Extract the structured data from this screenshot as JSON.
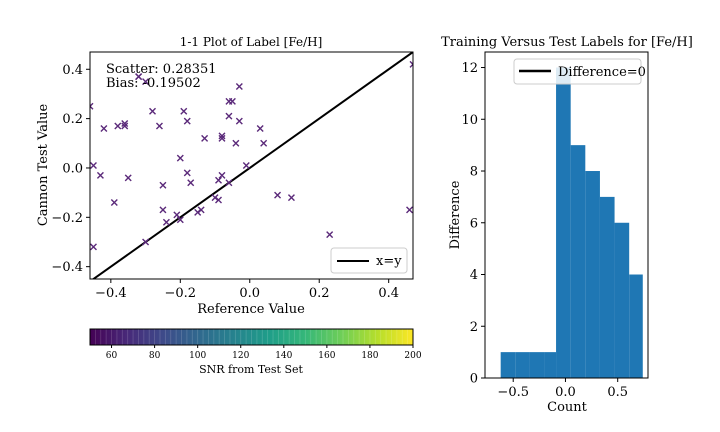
{
  "chart_data": [
    {
      "type": "scatter",
      "title": "1-1 Plot of Label [Fe/H]",
      "xlabel": "Reference Value",
      "ylabel": "Cannon Test Value",
      "xlim": [
        -0.46,
        0.47
      ],
      "ylim": [
        -0.45,
        0.47
      ],
      "xticks": [
        -0.4,
        -0.2,
        0.0,
        0.2,
        0.4
      ],
      "xtick_labels": [
        "−0.4",
        "−0.2",
        "0.0",
        "0.2",
        "0.4"
      ],
      "yticks": [
        -0.4,
        -0.2,
        0.0,
        0.2,
        0.4
      ],
      "ytick_labels": [
        "−0.4",
        "−0.2",
        "0.0",
        "0.2",
        "0.4"
      ],
      "annotations": [
        "Scatter: 0.28351",
        "Bias: -0.19502"
      ],
      "legend": {
        "position": "lower-right",
        "entries": [
          "x=y"
        ]
      },
      "reference_line": {
        "label": "x=y",
        "slope": 1,
        "intercept": 0
      },
      "marker": "x",
      "marker_color": "#5b2a7a",
      "points": [
        {
          "x": -0.46,
          "y": 0.25
        },
        {
          "x": -0.45,
          "y": 0.01
        },
        {
          "x": -0.45,
          "y": -0.32
        },
        {
          "x": -0.43,
          "y": -0.03
        },
        {
          "x": -0.42,
          "y": 0.16
        },
        {
          "x": -0.39,
          "y": -0.14
        },
        {
          "x": -0.38,
          "y": 0.17
        },
        {
          "x": -0.36,
          "y": 0.18
        },
        {
          "x": -0.36,
          "y": 0.17
        },
        {
          "x": -0.35,
          "y": -0.04
        },
        {
          "x": -0.32,
          "y": 0.37
        },
        {
          "x": -0.32,
          "y": 0.37
        },
        {
          "x": -0.3,
          "y": 0.35
        },
        {
          "x": -0.3,
          "y": -0.3
        },
        {
          "x": -0.28,
          "y": 0.23
        },
        {
          "x": -0.26,
          "y": 0.17
        },
        {
          "x": -0.25,
          "y": -0.07
        },
        {
          "x": -0.25,
          "y": -0.17
        },
        {
          "x": -0.24,
          "y": -0.22
        },
        {
          "x": -0.21,
          "y": -0.19
        },
        {
          "x": -0.2,
          "y": 0.04
        },
        {
          "x": -0.2,
          "y": -0.21
        },
        {
          "x": -0.19,
          "y": 0.23
        },
        {
          "x": -0.18,
          "y": 0.19
        },
        {
          "x": -0.18,
          "y": -0.02
        },
        {
          "x": -0.17,
          "y": -0.06
        },
        {
          "x": -0.15,
          "y": -0.18
        },
        {
          "x": -0.14,
          "y": -0.17
        },
        {
          "x": -0.13,
          "y": 0.12
        },
        {
          "x": -0.1,
          "y": -0.12
        },
        {
          "x": -0.09,
          "y": -0.05
        },
        {
          "x": -0.09,
          "y": -0.13
        },
        {
          "x": -0.08,
          "y": 0.13
        },
        {
          "x": -0.08,
          "y": -0.03
        },
        {
          "x": -0.08,
          "y": 0.12
        },
        {
          "x": -0.06,
          "y": 0.27
        },
        {
          "x": -0.06,
          "y": 0.21
        },
        {
          "x": -0.06,
          "y": -0.06
        },
        {
          "x": -0.05,
          "y": 0.27
        },
        {
          "x": -0.04,
          "y": 0.1
        },
        {
          "x": -0.03,
          "y": 0.19
        },
        {
          "x": -0.03,
          "y": 0.33
        },
        {
          "x": -0.01,
          "y": 0.01
        },
        {
          "x": 0.03,
          "y": 0.16
        },
        {
          "x": 0.04,
          "y": 0.1
        },
        {
          "x": 0.08,
          "y": -0.11
        },
        {
          "x": 0.12,
          "y": -0.12
        },
        {
          "x": 0.23,
          "y": -0.27
        },
        {
          "x": 0.46,
          "y": -0.17
        },
        {
          "x": 0.47,
          "y": 0.42
        }
      ]
    },
    {
      "type": "colorbar",
      "label": "SNR from Test Set",
      "colormap": "viridis",
      "range": [
        50,
        200
      ],
      "ticks": [
        60,
        80,
        100,
        120,
        140,
        160,
        180,
        200
      ],
      "colors": [
        "#440154",
        "#482878",
        "#3e4989",
        "#31688e",
        "#26828e",
        "#1f9e89",
        "#35b779",
        "#6ece58",
        "#b5de2b",
        "#fde725"
      ]
    },
    {
      "type": "bar",
      "title": "Training Versus Test Labels for [Fe/H]",
      "xlabel": "Count",
      "ylabel": "Difference",
      "xlim": [
        -0.77,
        0.79
      ],
      "ylim": [
        0,
        12.6
      ],
      "xticks": [
        -0.5,
        0.0,
        0.5
      ],
      "xtick_labels": [
        "−0.5",
        "0.0",
        "0.5"
      ],
      "yticks": [
        0,
        2,
        4,
        6,
        8,
        10,
        12
      ],
      "ytick_labels": [
        "0",
        "2",
        "4",
        "6",
        "8",
        "10",
        "12"
      ],
      "bar_color": "#1f77b4",
      "bins": [
        {
          "x0": -0.62,
          "x1": -0.48,
          "value": 1
        },
        {
          "x0": -0.48,
          "x1": -0.34,
          "value": 1
        },
        {
          "x0": -0.34,
          "x1": -0.2,
          "value": 1
        },
        {
          "x0": -0.2,
          "x1": -0.09,
          "value": 1
        },
        {
          "x0": -0.09,
          "x1": 0.05,
          "value": 12
        },
        {
          "x0": 0.05,
          "x1": 0.19,
          "value": 9
        },
        {
          "x0": 0.19,
          "x1": 0.33,
          "value": 8
        },
        {
          "x0": 0.33,
          "x1": 0.47,
          "value": 7
        },
        {
          "x0": 0.47,
          "x1": 0.61,
          "value": 6
        },
        {
          "x0": 0.61,
          "x1": 0.74,
          "value": 4
        }
      ],
      "legend": {
        "position": "top-right",
        "entries": [
          "Difference=0"
        ]
      }
    }
  ]
}
